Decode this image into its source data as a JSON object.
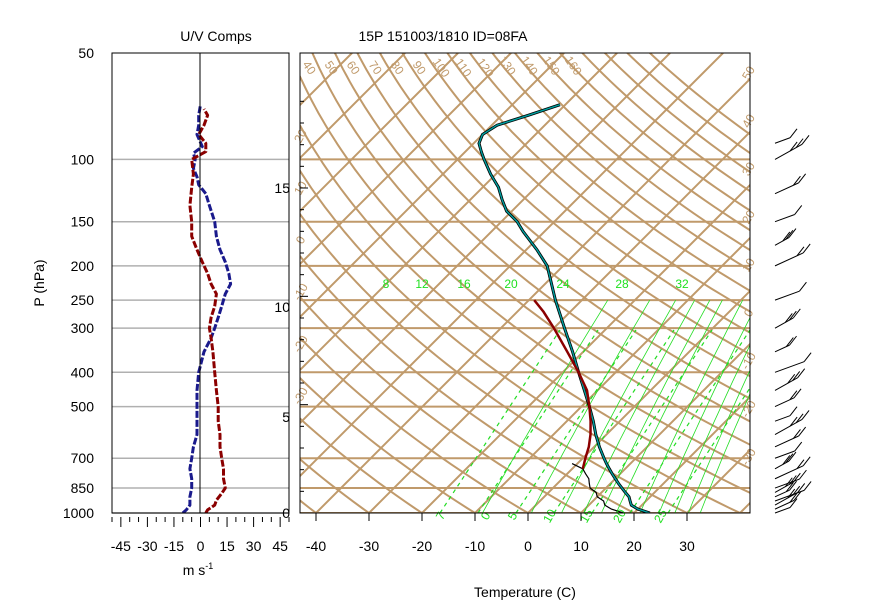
{
  "left_panel": {
    "title": "U/V Comps",
    "xlabel": "m s",
    "xlabel_sup": "-1",
    "ylabel": "P (hPa)"
  },
  "right_panel": {
    "title": "15P 151003/1810 ID=08FA",
    "xlabel": "Temperature (C)"
  },
  "colors": {
    "u_wind": "#1a1a8c",
    "v_wind": "#8b0000",
    "temperature": "#8b0000",
    "dewpoint": "#006060",
    "isotherm_skew": "#c09a6b",
    "mixing_ratio": "#22dd22",
    "grid": "#b0b0b0"
  },
  "chart_data": [
    {
      "type": "line",
      "name": "uv_components",
      "y_scale": "log-pressure",
      "y_ticks_hpa": [
        50,
        100,
        150,
        200,
        250,
        300,
        400,
        500,
        700,
        850,
        1000
      ],
      "y_tick_labels": [
        "50",
        "100",
        "150",
        "200",
        "250",
        "300",
        "400",
        "500",
        "700",
        "850",
        "1000"
      ],
      "x_ticks": [
        -45,
        -30,
        -15,
        0,
        15,
        30,
        45
      ],
      "x_tick_labels": [
        "-45",
        "-30",
        "-15",
        "0",
        "15",
        "30",
        "45"
      ],
      "xlim": [
        -50,
        50
      ],
      "series": [
        {
          "key": "u",
          "color": "#1a1a8c",
          "style": "dashed-heavy",
          "points": [
            [
              1000,
              -10
            ],
            [
              980,
              -8
            ],
            [
              950,
              -6
            ],
            [
              900,
              -6
            ],
            [
              850,
              -5
            ],
            [
              800,
              -5
            ],
            [
              750,
              -6
            ],
            [
              700,
              -5
            ],
            [
              650,
              -4
            ],
            [
              600,
              -2
            ],
            [
              550,
              -2
            ],
            [
              500,
              -2
            ],
            [
              450,
              -2
            ],
            [
              400,
              -1
            ],
            [
              350,
              2
            ],
            [
              320,
              6
            ],
            [
              300,
              8
            ],
            [
              280,
              10
            ],
            [
              260,
              12
            ],
            [
              240,
              14
            ],
            [
              225,
              17
            ],
            [
              210,
              16
            ],
            [
              195,
              14
            ],
            [
              180,
              11
            ],
            [
              165,
              9
            ],
            [
              150,
              8
            ],
            [
              135,
              5
            ],
            [
              125,
              3
            ],
            [
              118,
              -1
            ],
            [
              112,
              -2
            ],
            [
              106,
              -4
            ],
            [
              100,
              -3
            ],
            [
              96,
              -4
            ],
            [
              92,
              1
            ],
            [
              85,
              -2
            ],
            [
              80,
              -1
            ],
            [
              75,
              -1
            ],
            [
              70,
              0
            ]
          ]
        },
        {
          "key": "v",
          "color": "#8b0000",
          "style": "dashed-heavy",
          "points": [
            [
              1000,
              3
            ],
            [
              980,
              4
            ],
            [
              950,
              8
            ],
            [
              920,
              9
            ],
            [
              880,
              12
            ],
            [
              850,
              14
            ],
            [
              800,
              13
            ],
            [
              750,
              13
            ],
            [
              700,
              12
            ],
            [
              650,
              11
            ],
            [
              600,
              11
            ],
            [
              550,
              10
            ],
            [
              500,
              10
            ],
            [
              450,
              9
            ],
            [
              400,
              8
            ],
            [
              350,
              7
            ],
            [
              320,
              6
            ],
            [
              300,
              5
            ],
            [
              280,
              6
            ],
            [
              260,
              8
            ],
            [
              240,
              9
            ],
            [
              225,
              6
            ],
            [
              210,
              4
            ],
            [
              195,
              1
            ],
            [
              180,
              -2
            ],
            [
              165,
              -5
            ],
            [
              150,
              -5
            ],
            [
              135,
              -6
            ],
            [
              120,
              -5
            ],
            [
              110,
              -4
            ],
            [
              100,
              -5
            ],
            [
              95,
              3
            ],
            [
              90,
              3
            ],
            [
              85,
              -1
            ],
            [
              80,
              2
            ],
            [
              75,
              4
            ],
            [
              72,
              2
            ]
          ]
        }
      ]
    },
    {
      "type": "line",
      "name": "skewt",
      "y_scale": "log-pressure",
      "xlim": [
        -40,
        45
      ],
      "x_ticks": [
        -40,
        -30,
        -20,
        -10,
        0,
        10,
        20,
        30
      ],
      "x_tick_labels": [
        "-40",
        "-30",
        "-20",
        "-10",
        "0",
        "10",
        "20",
        "30"
      ],
      "height_ticks_km": [
        0,
        5,
        10,
        15
      ],
      "height_tick_labels": [
        "0",
        "5",
        "10",
        "15"
      ],
      "series": [
        {
          "key": "temperature",
          "color": "#004848",
          "points": [
            [
              1000,
              23
            ],
            [
              975,
              20
            ],
            [
              950,
              18
            ],
            [
              925,
              17
            ],
            [
              900,
              16
            ],
            [
              875,
              14.5
            ],
            [
              850,
              13
            ],
            [
              825,
              11.5
            ],
            [
              800,
              10
            ],
            [
              775,
              8.5
            ],
            [
              750,
              7
            ],
            [
              725,
              5.5
            ],
            [
              700,
              4
            ],
            [
              650,
              1
            ],
            [
              600,
              -2
            ],
            [
              550,
              -5
            ],
            [
              500,
              -8.5
            ],
            [
              450,
              -12.5
            ],
            [
              400,
              -17
            ],
            [
              350,
              -22
            ],
            [
              300,
              -28
            ],
            [
              250,
              -35
            ],
            [
              200,
              -43
            ],
            [
              180,
              -48
            ],
            [
              160,
              -54
            ],
            [
              150,
              -57
            ],
            [
              140,
              -61
            ],
            [
              130,
              -64
            ],
            [
              120,
              -67
            ],
            [
              110,
              -71
            ],
            [
              100,
              -75
            ],
            [
              95,
              -77
            ],
            [
              90,
              -79
            ],
            [
              85,
              -80
            ],
            [
              80,
              -79
            ],
            [
              75,
              -75
            ],
            [
              70,
              -71
            ]
          ]
        },
        {
          "key": "dewpoint",
          "color": "#000000",
          "points": [
            [
              1000,
              18
            ],
            [
              975,
              15
            ],
            [
              950,
              13
            ],
            [
              925,
              12
            ],
            [
              900,
              10
            ],
            [
              875,
              9
            ],
            [
              850,
              7
            ],
            [
              825,
              6
            ],
            [
              800,
              5
            ],
            [
              775,
              3.5
            ],
            [
              750,
              2
            ],
            [
              725,
              -1
            ]
          ]
        },
        {
          "key": "parcel",
          "color": "#8b0000",
          "points": [
            [
              750,
              2
            ],
            [
              700,
              0.5
            ],
            [
              650,
              -1
            ],
            [
              600,
              -3
            ],
            [
              550,
              -5.5
            ],
            [
              500,
              -8.5
            ],
            [
              450,
              -12
            ],
            [
              400,
              -17
            ],
            [
              350,
              -23
            ],
            [
              300,
              -30
            ],
            [
              270,
              -35
            ],
            [
              250,
              -39
            ]
          ]
        }
      ],
      "isotherm_labels": [
        "40",
        "50",
        "60",
        "70",
        "80",
        "90",
        "100",
        "110",
        "120",
        "130",
        "140",
        "150",
        "160"
      ],
      "mixing_ratio_labels": [
        "8",
        "12",
        "16",
        "20",
        "24",
        "28",
        "32"
      ],
      "dry_adiabat_labels_left": [
        "20",
        "10",
        "0",
        "-10",
        "-20",
        "-30"
      ],
      "dry_adiabat_labels_right": [
        "50",
        "40",
        "30",
        "20",
        "10",
        "0",
        "-10",
        "-20",
        "-30"
      ],
      "bottom_labels": [
        "7",
        "0",
        "5",
        "10",
        "15",
        "20",
        "25"
      ]
    },
    {
      "type": "barbs",
      "name": "wind_barbs",
      "levels_hpa": [
        1000,
        975,
        950,
        925,
        900,
        875,
        850,
        800,
        750,
        700,
        650,
        600,
        550,
        500,
        450,
        400,
        350,
        300,
        250,
        200,
        175,
        150,
        125,
        100,
        90
      ]
    }
  ]
}
